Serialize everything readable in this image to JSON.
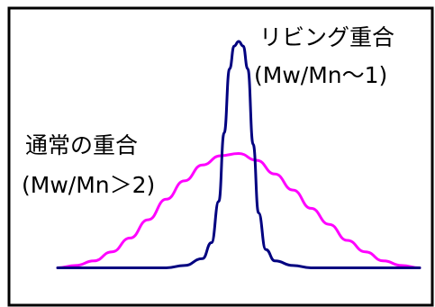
{
  "labels": {
    "living_title": "リビング重合",
    "living_ratio": "(Mw/Mn～1)",
    "conventional_title": "通常の重合",
    "conventional_ratio": "(Mw/Mn＞2)"
  },
  "chart_data": {
    "type": "line",
    "title": "",
    "xlabel": "",
    "ylabel": "",
    "x_range": [
      -10,
      10
    ],
    "y_range": [
      0,
      1
    ],
    "grid": false,
    "series": [
      {
        "color": "#ff00ff",
        "points": [
          [
            -10,
            0.01
          ],
          [
            -9,
            0.02
          ],
          [
            -8,
            0.04
          ],
          [
            -7,
            0.08
          ],
          [
            -6,
            0.14
          ],
          [
            -5,
            0.22
          ],
          [
            -4,
            0.31
          ],
          [
            -3,
            0.39
          ],
          [
            -2,
            0.46
          ],
          [
            -1,
            0.5
          ],
          [
            0,
            0.51
          ],
          [
            1,
            0.48
          ],
          [
            2,
            0.42
          ],
          [
            3,
            0.35
          ],
          [
            4,
            0.27
          ],
          [
            5,
            0.2
          ],
          [
            6,
            0.13
          ],
          [
            7,
            0.08
          ],
          [
            8,
            0.04
          ],
          [
            9,
            0.02
          ],
          [
            10,
            0.01
          ]
        ]
      },
      {
        "color": "#000080",
        "points": [
          [
            -10,
            0.01
          ],
          [
            -6,
            0.01
          ],
          [
            -4,
            0.01
          ],
          [
            -3,
            0.02
          ],
          [
            -2,
            0.05
          ],
          [
            -1.5,
            0.12
          ],
          [
            -1.1,
            0.3
          ],
          [
            -0.8,
            0.6
          ],
          [
            -0.5,
            0.88
          ],
          [
            -0.25,
            0.98
          ],
          [
            0,
            1.0
          ],
          [
            0.25,
            0.98
          ],
          [
            0.5,
            0.88
          ],
          [
            0.8,
            0.55
          ],
          [
            1.1,
            0.25
          ],
          [
            1.5,
            0.09
          ],
          [
            2,
            0.04
          ],
          [
            3,
            0.02
          ],
          [
            4,
            0.01
          ],
          [
            6,
            0.01
          ],
          [
            10,
            0.01
          ]
        ]
      }
    ]
  },
  "colors": {
    "frame": "#000000",
    "background": "#ffffff"
  }
}
